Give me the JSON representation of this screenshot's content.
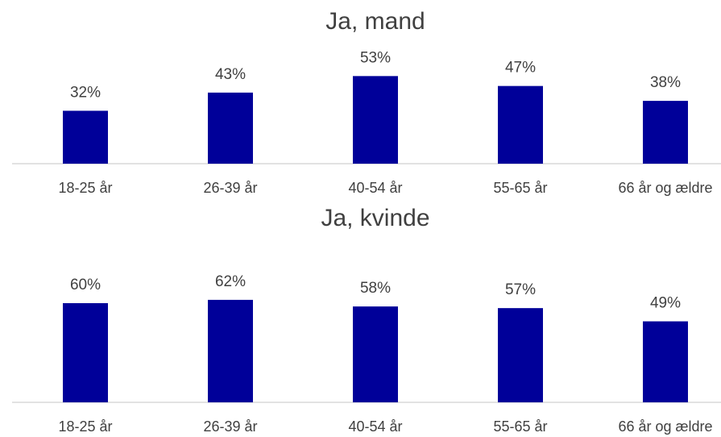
{
  "chart_data": [
    {
      "type": "bar",
      "title": "Ja, mand",
      "categories": [
        "18-25 år",
        "26-39 år",
        "40-54 år",
        "55-65 år",
        "66 år og ældre"
      ],
      "values": [
        32,
        43,
        53,
        47,
        38
      ],
      "value_labels": [
        "32%",
        "43%",
        "53%",
        "47%",
        "38%"
      ],
      "color": "#000099"
    },
    {
      "type": "bar",
      "title": "Ja, kvinde",
      "categories": [
        "18-25 år",
        "26-39 år",
        "40-54 år",
        "55-65 år",
        "66 år og ældre"
      ],
      "values": [
        60,
        62,
        58,
        57,
        49
      ],
      "value_labels": [
        "60%",
        "62%",
        "58%",
        "57%",
        "49%"
      ],
      "color": "#000099"
    }
  ]
}
